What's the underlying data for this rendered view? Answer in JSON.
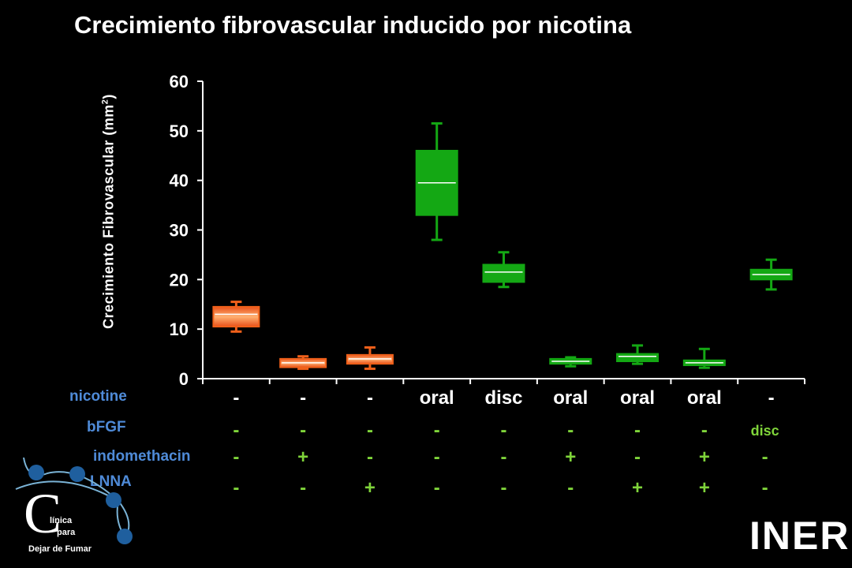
{
  "title": "Crecimiento fibrovascular inducido por nicotina",
  "colors": {
    "background": "#000000",
    "control_box": "#f0601a",
    "control_box_light": "#ffb070",
    "nicotine_box": "#14a814",
    "row_labels": "#4f8bd8",
    "row_values": "#7fd43a",
    "axis": "#ffffff"
  },
  "chart_data": {
    "type": "boxplot",
    "title": "Crecimiento fibrovascular inducido por nicotina",
    "ylabel": "Crecimiento Fibrovascular (mm²)",
    "ylabel_text": "Crecimiento Fibrovascular (mm",
    "ylabel_sup": "2",
    "ylabel_close": ")",
    "ylim": [
      0,
      60
    ],
    "yticks": [
      0,
      10,
      20,
      30,
      40,
      50,
      60
    ],
    "grid": false,
    "boxes": [
      {
        "min": 9.5,
        "q1": 10.5,
        "median": 13.0,
        "q3": 14.5,
        "max": 15.5,
        "color": "orange"
      },
      {
        "min": 2.0,
        "q1": 2.3,
        "median": 3.2,
        "q3": 4.0,
        "max": 4.5,
        "color": "orange"
      },
      {
        "min": 2.0,
        "q1": 3.0,
        "median": 4.0,
        "q3": 4.8,
        "max": 6.3,
        "color": "orange"
      },
      {
        "min": 28.0,
        "q1": 33.0,
        "median": 39.5,
        "q3": 46.0,
        "max": 51.5,
        "color": "green"
      },
      {
        "min": 18.5,
        "q1": 19.5,
        "median": 21.5,
        "q3": 23.0,
        "max": 25.5,
        "color": "green"
      },
      {
        "min": 2.5,
        "q1": 3.0,
        "median": 3.5,
        "q3": 4.0,
        "max": 4.3,
        "color": "green"
      },
      {
        "min": 3.0,
        "q1": 3.5,
        "median": 4.5,
        "q3": 5.0,
        "max": 6.7,
        "color": "green"
      },
      {
        "min": 2.2,
        "q1": 2.7,
        "median": 3.2,
        "q3": 3.7,
        "max": 6.0,
        "color": "green"
      },
      {
        "min": 18.0,
        "q1": 20.0,
        "median": 21.0,
        "q3": 22.0,
        "max": 24.0,
        "color": "green"
      }
    ],
    "categories": [
      "-",
      "-",
      "-",
      "oral",
      "disc",
      "oral",
      "oral",
      "oral",
      "-"
    ]
  },
  "rows": {
    "nicotine": {
      "label": "nicotine"
    },
    "bFGF": {
      "label": "bFGF",
      "values": [
        "-",
        "-",
        "-",
        "-",
        "-",
        "-",
        "-",
        "-",
        "disc"
      ]
    },
    "indomethacin": {
      "label": "indomethacin",
      "values": [
        "-",
        "+",
        "-",
        "-",
        "-",
        "+",
        "-",
        "+",
        "-"
      ]
    },
    "LNNA": {
      "label": "LNNA",
      "values": [
        "-",
        "-",
        "+",
        "-",
        "-",
        "-",
        "+",
        "+",
        "-"
      ]
    }
  },
  "logo": {
    "letter": "C",
    "line1": "línica",
    "line2": "para",
    "line3": "Dejar de Fumar"
  },
  "institution": {
    "text": "INER"
  }
}
